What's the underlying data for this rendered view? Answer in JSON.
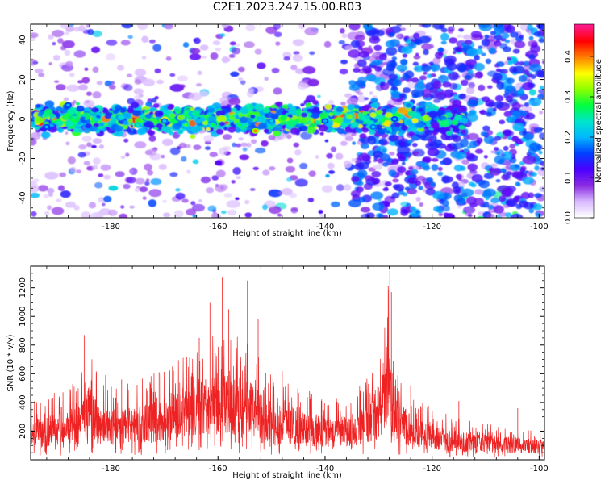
{
  "title": "C2E1.2023.247.15.00.R03",
  "colors": {
    "signal": "#ee2222",
    "colormap": [
      "#ffffff",
      "#d8b8ff",
      "#8a2be2",
      "#4b00ff",
      "#0040ff",
      "#00b7ff",
      "#00e5cc",
      "#00ff40",
      "#8cff00",
      "#ffff00",
      "#ff8000",
      "#ff0000",
      "#ff1a8c"
    ]
  },
  "chart_data": [
    {
      "type": "heatmap",
      "panel": "spectrogram",
      "xlabel": "Height of straight line (km)",
      "ylabel": "Frequency (Hz)",
      "xlim": [
        -195,
        -99
      ],
      "ylim": [
        -50,
        48
      ],
      "xticks": [
        -180,
        -160,
        -140,
        -120,
        -100
      ],
      "yticks": [
        -40,
        -20,
        0,
        20,
        40
      ],
      "grid": false,
      "colorbar": {
        "label": "Normalized spectral amplitude",
        "range": [
          0.0,
          0.48
        ],
        "ticks": [
          0.0,
          0.1,
          0.2,
          0.3,
          0.4
        ]
      },
      "signal_band": {
        "center_hz": 0,
        "width_hz": 12,
        "extent_km": [
          -195,
          -120
        ]
      },
      "peaks": [
        {
          "x": -192,
          "y": -4,
          "v": 0.2
        },
        {
          "x": -188,
          "y": 7,
          "v": 0.2
        },
        {
          "x": -175,
          "y": -3,
          "v": 0.25
        },
        {
          "x": -170,
          "y": -1,
          "v": 0.22
        },
        {
          "x": -166,
          "y": -3,
          "v": 0.3
        },
        {
          "x": -161,
          "y": -3,
          "v": 0.28
        },
        {
          "x": -156,
          "y": -3,
          "v": 0.28
        },
        {
          "x": -153,
          "y": -6,
          "v": 0.4
        },
        {
          "x": -150,
          "y": -1,
          "v": 0.22
        },
        {
          "x": -140,
          "y": -1,
          "v": 0.2
        },
        {
          "x": -131,
          "y": -4,
          "v": 0.22
        },
        {
          "x": -127,
          "y": 0,
          "v": 0.2
        }
      ]
    },
    {
      "type": "line",
      "panel": "snr",
      "xlabel": "Height of straight line (km)",
      "ylabel": "SNR (10 * v/v)",
      "xlim": [
        -195,
        -99
      ],
      "ylim": [
        0,
        1350
      ],
      "xticks": [
        -180,
        -160,
        -140,
        -120,
        -100
      ],
      "yticks": [
        200,
        400,
        600,
        800,
        1000,
        1200
      ],
      "grid": false,
      "envelope_km": [
        -195,
        -190,
        -186,
        -184,
        -182,
        -178,
        -174,
        -170,
        -166,
        -163,
        -160,
        -158,
        -155,
        -153,
        -150,
        -146,
        -142,
        -138,
        -134,
        -131,
        -129,
        -128,
        -127,
        -124,
        -120,
        -116,
        -112,
        -108,
        -104,
        -99
      ],
      "envelope_snr": [
        240,
        270,
        320,
        430,
        290,
        300,
        320,
        360,
        430,
        460,
        520,
        490,
        480,
        420,
        340,
        290,
        260,
        240,
        280,
        340,
        520,
        700,
        360,
        260,
        200,
        170,
        150,
        140,
        130,
        120
      ],
      "spikes": [
        {
          "x": -185,
          "y": 870
        },
        {
          "x": -184.7,
          "y": 840
        },
        {
          "x": -181,
          "y": 590
        },
        {
          "x": -178,
          "y": 560
        },
        {
          "x": -171,
          "y": 610
        },
        {
          "x": -166,
          "y": 720
        },
        {
          "x": -163.5,
          "y": 850
        },
        {
          "x": -161.5,
          "y": 1100
        },
        {
          "x": -159.2,
          "y": 1270
        },
        {
          "x": -158,
          "y": 1050
        },
        {
          "x": -154.5,
          "y": 1250
        },
        {
          "x": -152.5,
          "y": 980
        },
        {
          "x": -148,
          "y": 620
        },
        {
          "x": -131,
          "y": 610
        },
        {
          "x": -128.2,
          "y": 1210
        },
        {
          "x": -127.9,
          "y": 1350
        },
        {
          "x": -127.6,
          "y": 1170
        },
        {
          "x": -124,
          "y": 520
        },
        {
          "x": -115,
          "y": 410
        },
        {
          "x": -104,
          "y": 360
        }
      ]
    }
  ]
}
